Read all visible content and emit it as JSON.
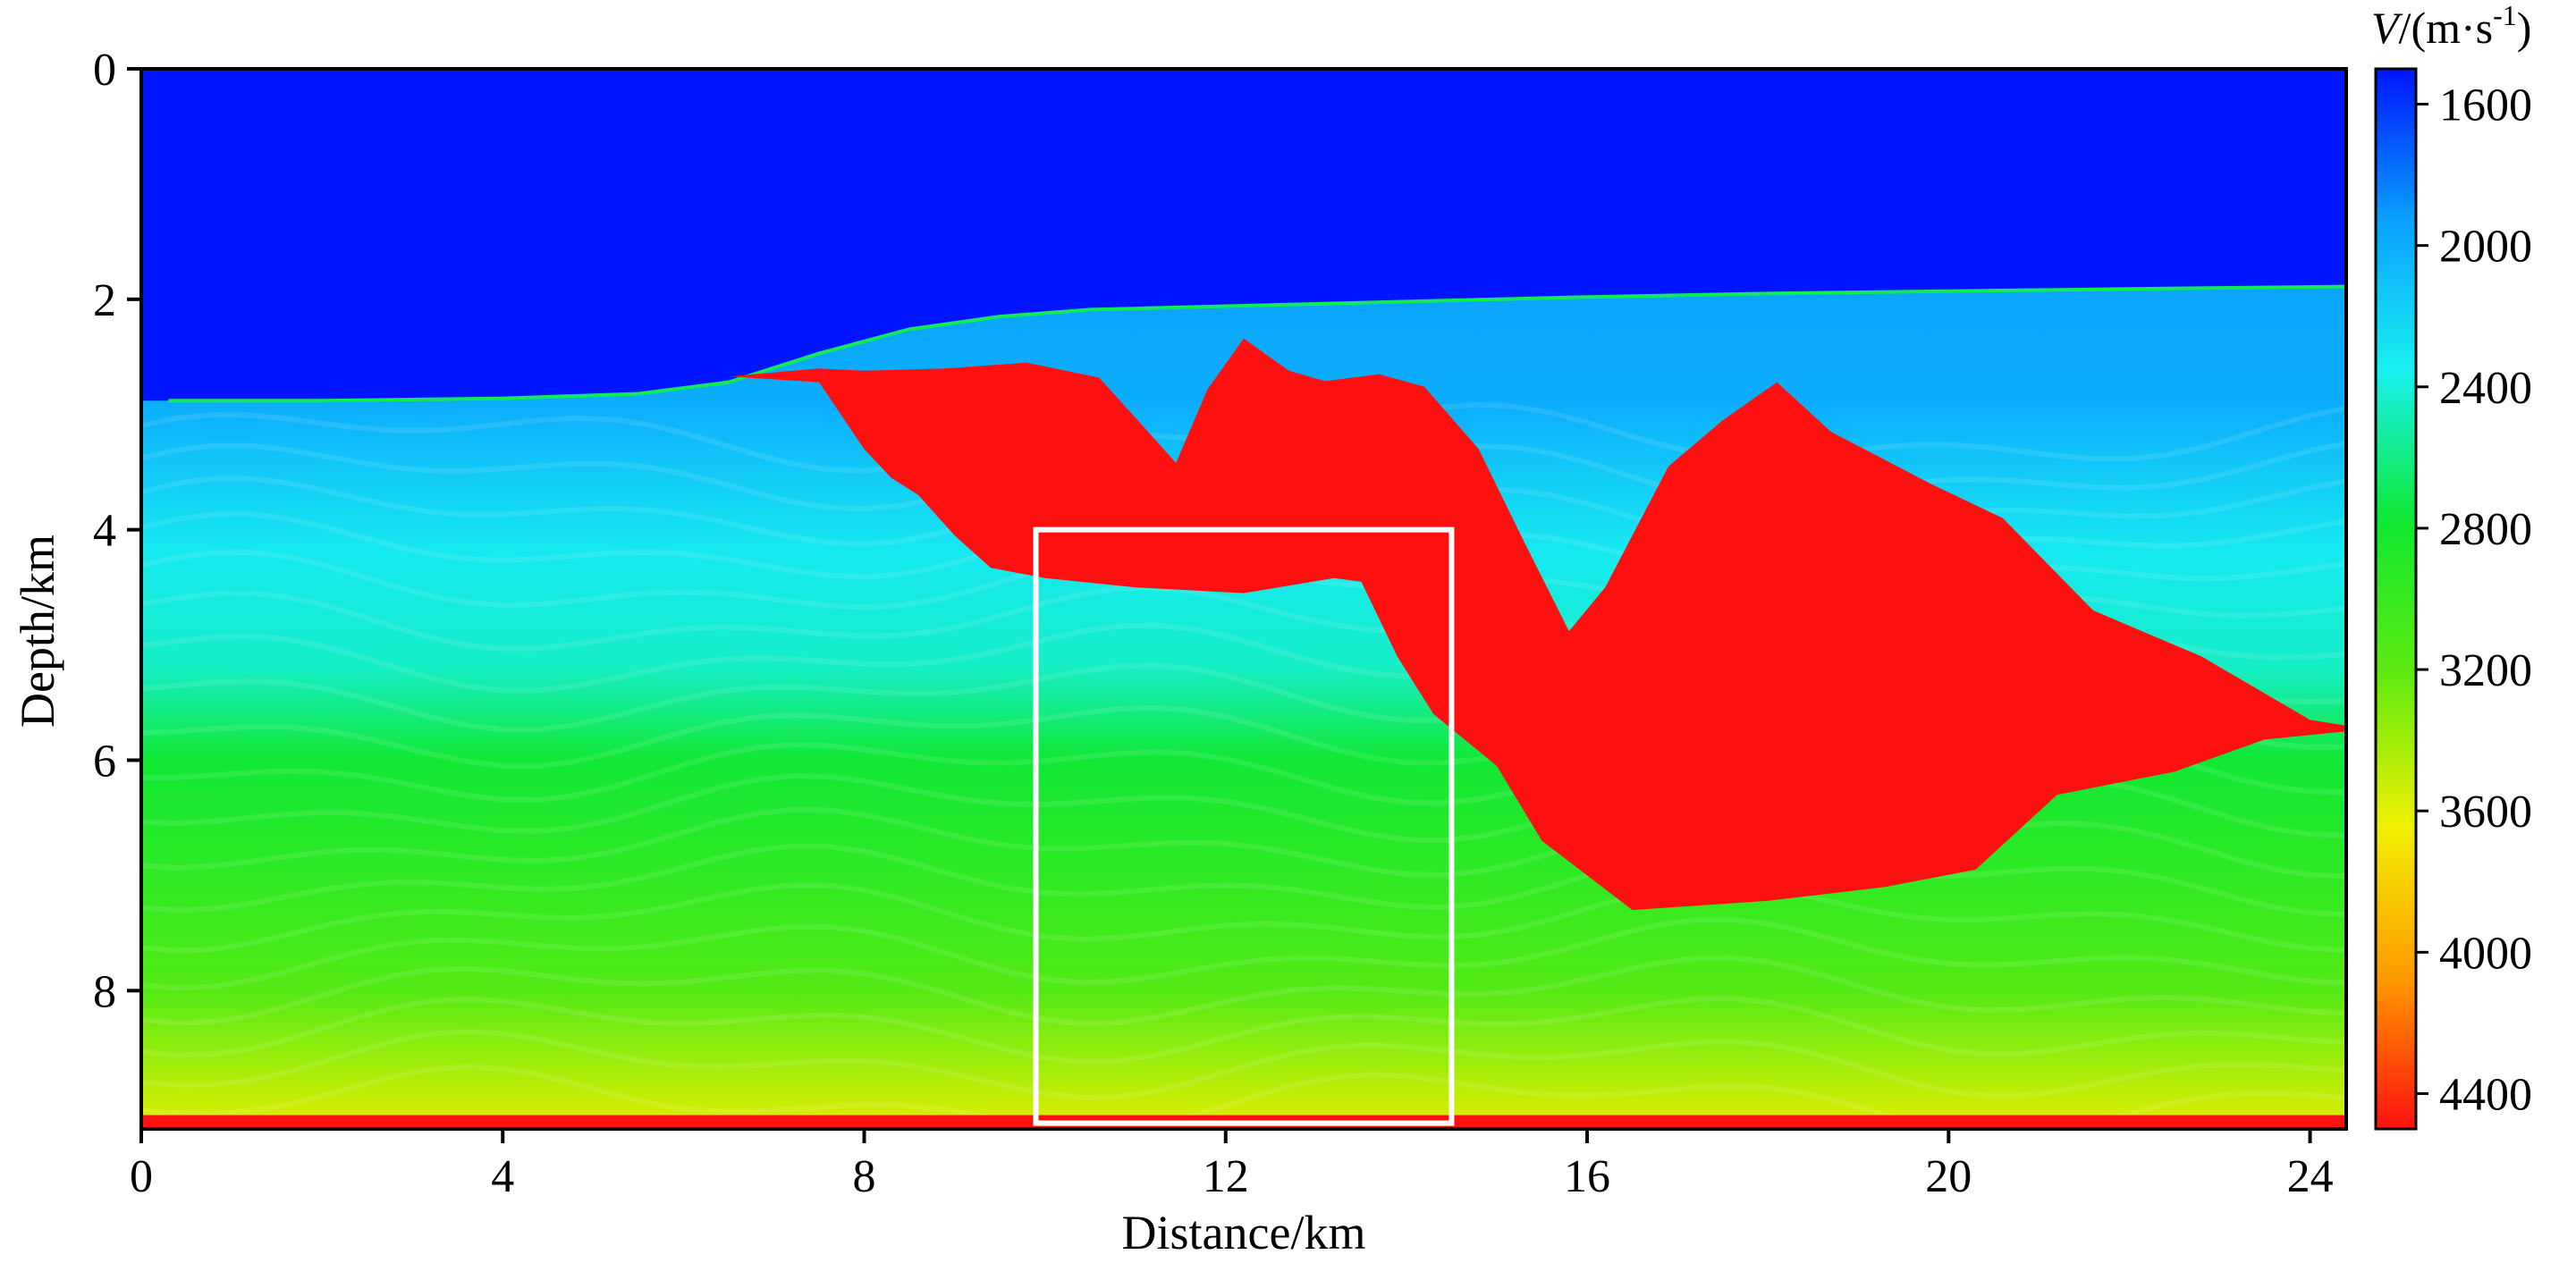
{
  "chart_data": {
    "type": "heatmap",
    "title": "",
    "xlabel": "Distance/km",
    "ylabel": "Depth/km",
    "xlim": [
      0,
      24.4
    ],
    "ylim": [
      0,
      9.2
    ],
    "x_ticks": [
      0,
      4,
      8,
      12,
      16,
      20,
      24
    ],
    "y_ticks": [
      0,
      2,
      4,
      6,
      8
    ],
    "colorbar": {
      "title_main": "V",
      "title_unit": "/(m·s",
      "title_exp": "-1",
      "title_close": ")",
      "range": [
        1500,
        4500
      ],
      "ticks": [
        1600,
        2000,
        2400,
        2800,
        3200,
        3600,
        4000,
        4400
      ],
      "colormap": [
        "#0014ff",
        "#0aa0ff",
        "#18f0f0",
        "#10e830",
        "#60ea10",
        "#f0f000",
        "#ff9a00",
        "#ff1010"
      ]
    },
    "layers": {
      "water_velocity": 1500,
      "salt_velocity": 4500,
      "deep_velocity": 3600,
      "bottom_layer_velocity": 4500,
      "seafloor_depth": [
        [
          0.3,
          2.88
        ],
        [
          2,
          2.88
        ],
        [
          4,
          2.86
        ],
        [
          5.5,
          2.82
        ],
        [
          6.5,
          2.72
        ],
        [
          7.5,
          2.47
        ],
        [
          8.5,
          2.26
        ],
        [
          9.5,
          2.15
        ],
        [
          10.5,
          2.09
        ],
        [
          12,
          2.06
        ],
        [
          14,
          2.02
        ],
        [
          16,
          1.98
        ],
        [
          18,
          1.95
        ],
        [
          20,
          1.93
        ],
        [
          22,
          1.91
        ],
        [
          24.4,
          1.89
        ]
      ],
      "salt_body": [
        [
          6.5,
          2.67
        ],
        [
          7.5,
          2.6
        ],
        [
          8.0,
          2.62
        ],
        [
          8.9,
          2.6
        ],
        [
          9.8,
          2.55
        ],
        [
          10.6,
          2.68
        ],
        [
          11.2,
          3.2
        ],
        [
          11.45,
          3.42
        ],
        [
          11.8,
          2.78
        ],
        [
          12.2,
          2.34
        ],
        [
          12.7,
          2.62
        ],
        [
          13.1,
          2.71
        ],
        [
          13.7,
          2.65
        ],
        [
          14.2,
          2.76
        ],
        [
          14.8,
          3.3
        ],
        [
          15.3,
          4.1
        ],
        [
          15.8,
          4.88
        ],
        [
          16.2,
          4.5
        ],
        [
          16.9,
          3.45
        ],
        [
          17.5,
          3.05
        ],
        [
          18.1,
          2.72
        ],
        [
          18.7,
          3.15
        ],
        [
          19.8,
          3.6
        ],
        [
          20.6,
          3.9
        ],
        [
          21.6,
          4.7
        ],
        [
          22.8,
          5.1
        ],
        [
          24.0,
          5.65
        ],
        [
          24.4,
          5.7
        ],
        [
          24.4,
          5.75
        ],
        [
          23.5,
          5.82
        ],
        [
          22.5,
          6.1
        ],
        [
          21.2,
          6.3
        ],
        [
          20.3,
          6.95
        ],
        [
          19.3,
          7.1
        ],
        [
          18.0,
          7.22
        ],
        [
          16.5,
          7.3
        ],
        [
          15.5,
          6.7
        ],
        [
          15.0,
          6.05
        ],
        [
          14.3,
          5.6
        ],
        [
          13.9,
          5.1
        ],
        [
          13.5,
          4.45
        ],
        [
          13.2,
          4.42
        ],
        [
          12.2,
          4.55
        ],
        [
          11.0,
          4.5
        ],
        [
          10.0,
          4.42
        ],
        [
          9.4,
          4.33
        ],
        [
          9.0,
          4.05
        ],
        [
          8.6,
          3.7
        ],
        [
          8.3,
          3.55
        ],
        [
          8.0,
          3.3
        ],
        [
          7.5,
          2.72
        ]
      ]
    },
    "annotations": [
      {
        "type": "rectangle",
        "label": "",
        "x_range": [
          9.9,
          14.5
        ],
        "y_range": [
          4.0,
          9.15
        ],
        "color": "#ffffff"
      }
    ]
  }
}
